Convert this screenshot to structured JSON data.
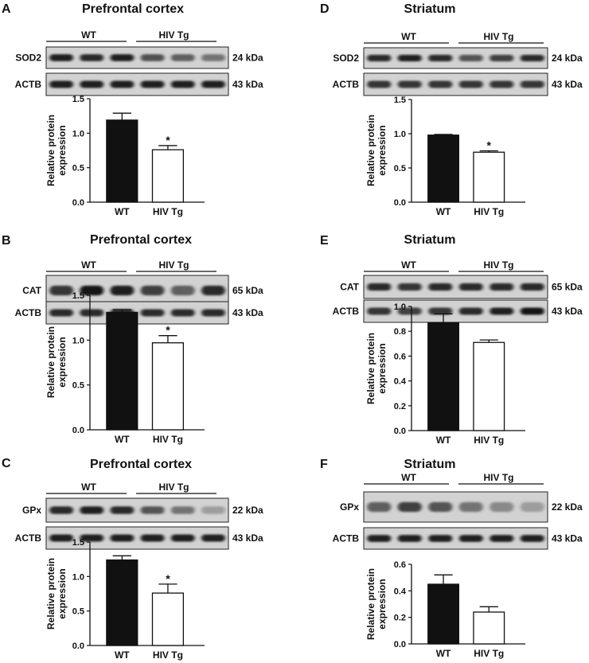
{
  "panels": [
    {
      "letter": "A",
      "title": "Prefrontal cortex",
      "groups": [
        "WT",
        "HIV Tg"
      ],
      "blots": [
        {
          "protein": "SOD2",
          "size": "24 kDa",
          "bands": [
            0.85,
            0.8,
            0.85,
            0.62,
            0.55,
            0.45
          ]
        },
        {
          "protein": "ACTB",
          "size": "43 kDa",
          "bands": [
            0.85,
            0.85,
            0.85,
            0.85,
            0.85,
            0.85
          ]
        }
      ],
      "chart_data": {
        "type": "bar",
        "categories": [
          "WT",
          "HIV Tg"
        ],
        "values": [
          1.19,
          0.76
        ],
        "errors": [
          0.1,
          0.06
        ],
        "significance": [
          "",
          "*"
        ],
        "ylabel": "Relative protein expression",
        "ylim": [
          0,
          1.5
        ],
        "yticks": [
          0.0,
          0.5,
          1.0,
          1.5
        ],
        "tick_labels": [
          "0.0",
          "0.5",
          "1.0",
          "1.5"
        ],
        "bar_colors": [
          "#111111",
          "#ffffff"
        ]
      }
    },
    {
      "letter": "B",
      "title": "Prefrontal cortex",
      "groups": [
        "WT",
        "HIV Tg"
      ],
      "blots": [
        {
          "protein": "CAT",
          "size": "65 kDa",
          "bands": [
            0.75,
            0.9,
            0.85,
            0.7,
            0.55,
            0.8
          ]
        },
        {
          "protein": "ACTB",
          "size": "43 kDa",
          "bands": [
            0.8,
            0.8,
            0.8,
            0.8,
            0.8,
            0.8
          ]
        }
      ],
      "chart_data": {
        "type": "bar",
        "categories": [
          "WT",
          "HIV Tg"
        ],
        "values": [
          1.31,
          0.97
        ],
        "errors": [
          0.03,
          0.08
        ],
        "significance": [
          "",
          "*"
        ],
        "ylabel": "Relative protein expression",
        "ylim": [
          0,
          1.5
        ],
        "yticks": [
          0.0,
          0.5,
          1.0,
          1.5
        ],
        "tick_labels": [
          "0.0",
          "0.5",
          "1.0",
          "1.5"
        ],
        "bar_colors": [
          "#111111",
          "#ffffff"
        ]
      }
    },
    {
      "letter": "C",
      "title": "Prefrontal cortex",
      "groups": [
        "WT",
        "HIV Tg"
      ],
      "blots": [
        {
          "protein": "GPx",
          "size": "22 kDa",
          "bands": [
            0.8,
            0.85,
            0.8,
            0.6,
            0.45,
            0.25
          ]
        },
        {
          "protein": "ACTB",
          "size": "43 kDa",
          "bands": [
            0.85,
            0.85,
            0.85,
            0.85,
            0.85,
            0.85
          ]
        }
      ],
      "chart_data": {
        "type": "bar",
        "categories": [
          "WT",
          "HIV Tg"
        ],
        "values": [
          1.24,
          0.76
        ],
        "errors": [
          0.06,
          0.13
        ],
        "significance": [
          "",
          "*"
        ],
        "ylabel": "Relative protein expression",
        "ylim": [
          0,
          1.5
        ],
        "yticks": [
          0.0,
          0.5,
          1.0,
          1.5
        ],
        "tick_labels": [
          "0.0",
          "0.5",
          "1.0",
          "1.5"
        ],
        "bar_colors": [
          "#111111",
          "#ffffff"
        ]
      }
    },
    {
      "letter": "D",
      "title": "Striatum",
      "groups": [
        "WT",
        "HIV Tg"
      ],
      "blots": [
        {
          "protein": "SOD2",
          "size": "24 kDa",
          "bands": [
            0.8,
            0.85,
            0.8,
            0.6,
            0.7,
            0.8
          ]
        },
        {
          "protein": "ACTB",
          "size": "43 kDa",
          "bands": [
            0.75,
            0.75,
            0.75,
            0.75,
            0.75,
            0.75
          ]
        }
      ],
      "chart_data": {
        "type": "bar",
        "categories": [
          "WT",
          "HIV Tg"
        ],
        "values": [
          0.98,
          0.73
        ],
        "errors": [
          0.01,
          0.02
        ],
        "significance": [
          "",
          "*"
        ],
        "ylabel": "Relative protein expression",
        "ylim": [
          0,
          1.5
        ],
        "yticks": [
          0.0,
          0.5,
          1.0,
          1.5
        ],
        "tick_labels": [
          "0.0",
          "0.5",
          "1.0",
          "1.5"
        ],
        "bar_colors": [
          "#111111",
          "#ffffff"
        ]
      }
    },
    {
      "letter": "E",
      "title": "Striatum",
      "groups": [
        "WT",
        "HIV Tg"
      ],
      "blots": [
        {
          "protein": "CAT",
          "size": "65 kDa",
          "bands": [
            0.8,
            0.75,
            0.8,
            0.8,
            0.8,
            0.8
          ]
        },
        {
          "protein": "ACTB",
          "size": "43 kDa",
          "bands": [
            0.75,
            0.7,
            0.75,
            0.8,
            0.85,
            0.9
          ]
        }
      ],
      "chart_data": {
        "type": "bar",
        "categories": [
          "WT",
          "HIV Tg"
        ],
        "values": [
          0.87,
          0.71
        ],
        "errors": [
          0.07,
          0.02
        ],
        "significance": [
          "",
          ""
        ],
        "ylabel": "Relative protein expression",
        "ylim": [
          0,
          1.0
        ],
        "yticks": [
          0.0,
          0.2,
          0.4,
          0.6,
          0.8,
          1.0
        ],
        "tick_labels": [
          "0.0",
          "0.2",
          "0.4",
          "0.6",
          "0.8",
          "1.0"
        ],
        "bar_colors": [
          "#111111",
          "#ffffff"
        ]
      }
    },
    {
      "letter": "F",
      "title": "Striatum",
      "groups": [
        "WT",
        "HIV Tg"
      ],
      "blots": [
        {
          "protein": "GPx",
          "size": "22 kDa",
          "bands": [
            0.55,
            0.7,
            0.6,
            0.45,
            0.35,
            0.25
          ]
        },
        {
          "protein": "ACTB",
          "size": "43 kDa",
          "bands": [
            0.85,
            0.85,
            0.85,
            0.85,
            0.85,
            0.85
          ]
        }
      ],
      "chart_data": {
        "type": "bar",
        "categories": [
          "WT",
          "HIV Tg"
        ],
        "values": [
          0.45,
          0.24
        ],
        "errors": [
          0.07,
          0.04
        ],
        "significance": [
          "",
          ""
        ],
        "ylabel": "Relative protein expression",
        "ylim": [
          0,
          0.6
        ],
        "yticks": [
          0.0,
          0.2,
          0.4,
          0.6
        ],
        "tick_labels": [
          "0.0",
          "0.2",
          "0.4",
          "0.6"
        ],
        "bar_colors": [
          "#111111",
          "#ffffff"
        ]
      }
    }
  ]
}
